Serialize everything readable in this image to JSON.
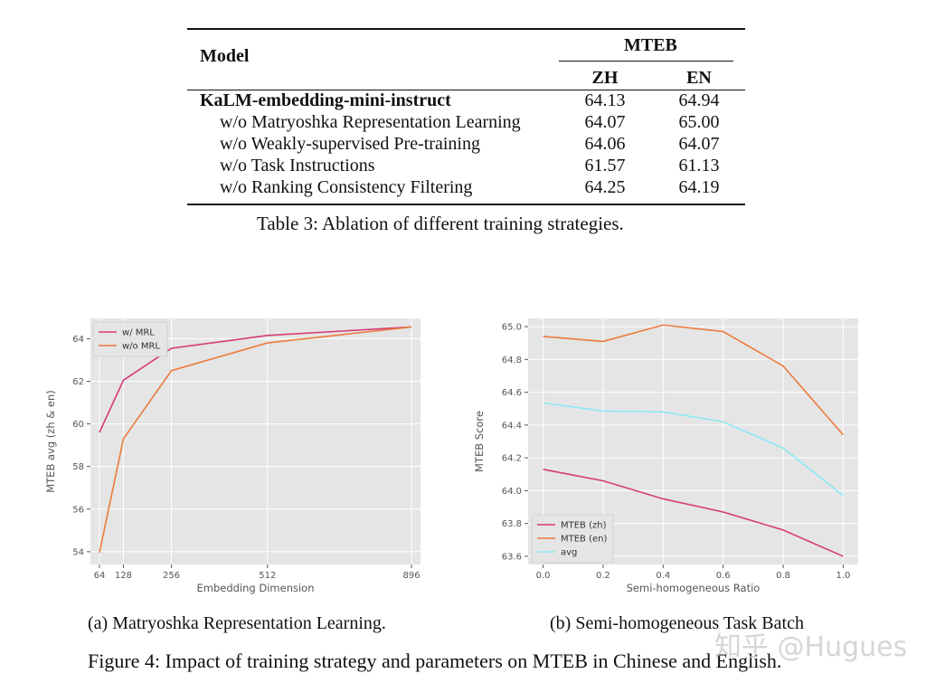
{
  "table": {
    "header_model": "Model",
    "header_group": "MTEB",
    "header_cols": [
      "ZH",
      "EN"
    ],
    "rows": [
      {
        "label": "KaLM-embedding-mini-instruct",
        "zh": "64.13",
        "en": "64.94"
      },
      {
        "label": "w/o Matryoshka Representation Learning",
        "zh": "64.07",
        "en": "65.00"
      },
      {
        "label": "w/o Weakly-supervised Pre-training",
        "zh": "64.06",
        "en": "64.07"
      },
      {
        "label": "w/o Task Instructions",
        "zh": "61.57",
        "en": "61.13"
      },
      {
        "label": "w/o Ranking Consistency Filtering",
        "zh": "64.25",
        "en": "64.19"
      }
    ],
    "caption": "Table 3: Ablation of different training strategies."
  },
  "chart_data": [
    {
      "type": "line",
      "x": [
        64,
        128,
        256,
        512,
        896
      ],
      "xticks": [
        "64",
        "128",
        "256",
        "512",
        "896"
      ],
      "series": [
        {
          "name": "w/ MRL",
          "color": "#d63a7a",
          "values": [
            59.6,
            62.05,
            63.55,
            64.15,
            64.55
          ]
        },
        {
          "name": "w/o MRL",
          "color": "#ec7a3c",
          "values": [
            53.95,
            59.3,
            62.5,
            63.8,
            64.55
          ]
        }
      ],
      "xlabel": "Embedding Dimension",
      "ylabel": "MTEB avg (zh & en)",
      "yticks": [
        "54",
        "56",
        "58",
        "60",
        "62",
        "64"
      ],
      "ylim": [
        53.4,
        64.95
      ],
      "xlim": [
        40,
        920
      ],
      "grid": true,
      "legend": "top-left",
      "subcaption": "(a) Matryoshka Representation Learning."
    },
    {
      "type": "line",
      "x": [
        0.0,
        0.2,
        0.4,
        0.6,
        0.8,
        1.0
      ],
      "xticks": [
        "0.0",
        "0.2",
        "0.4",
        "0.6",
        "0.8",
        "1.0"
      ],
      "series": [
        {
          "name": "MTEB (zh)",
          "color": "#d63a7a",
          "values": [
            64.13,
            64.06,
            63.95,
            63.87,
            63.76,
            63.6
          ]
        },
        {
          "name": "MTEB (en)",
          "color": "#ec7a3c",
          "values": [
            64.94,
            64.91,
            65.01,
            64.97,
            64.76,
            64.34
          ]
        },
        {
          "name": "avg",
          "color": "#8de8f5",
          "values": [
            64.535,
            64.485,
            64.48,
            64.42,
            64.26,
            63.97
          ]
        }
      ],
      "xlabel": "Semi-homogeneous Ratio",
      "ylabel": "MTEB Score",
      "yticks": [
        "63.6",
        "63.8",
        "64.0",
        "64.2",
        "64.4",
        "64.6",
        "64.8",
        "65.0"
      ],
      "ylim": [
        63.55,
        65.05
      ],
      "xlim": [
        -0.05,
        1.05
      ],
      "grid": true,
      "legend": "bottom-left",
      "subcaption": "(b) Semi-homogeneous Task Batch"
    }
  ],
  "figure_caption": "Figure 4: Impact of training strategy and parameters on MTEB in Chinese and English.",
  "watermark": "知乎 @Hugues"
}
